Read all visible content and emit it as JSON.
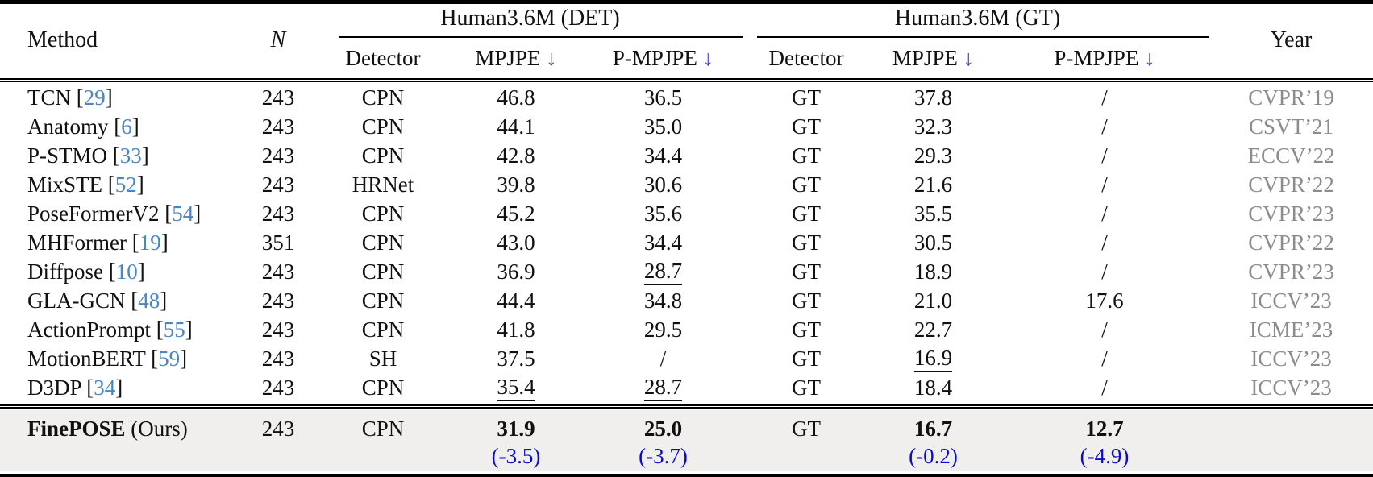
{
  "colors": {
    "text": "#111111",
    "citation": "#4a86c2",
    "arrow": "#3b3bd8",
    "delta": "#0b0bd0",
    "year": "#8c8c8c",
    "highlight_bg": "#f0efee"
  },
  "header": {
    "method": "Method",
    "n": "N",
    "det_group": "Human3.6M (DET)",
    "gt_group": "Human3.6M (GT)",
    "year": "Year",
    "detector": "Detector",
    "mpjpe": "MPJPE",
    "pmpjpe": "P-MPJPE",
    "down_arrow": "↓"
  },
  "rows": [
    {
      "method": "TCN",
      "cite": "29",
      "n": "243",
      "det_detector": "CPN",
      "det_mpjpe": "46.8",
      "det_pmpjpe": "36.5",
      "gt_detector": "GT",
      "gt_mpjpe": "37.8",
      "gt_pmpjpe": "/",
      "year": "CVPR’19",
      "underline": []
    },
    {
      "method": "Anatomy",
      "cite": "6",
      "n": "243",
      "det_detector": "CPN",
      "det_mpjpe": "44.1",
      "det_pmpjpe": "35.0",
      "gt_detector": "GT",
      "gt_mpjpe": "32.3",
      "gt_pmpjpe": "/",
      "year": "CSVT’21",
      "underline": []
    },
    {
      "method": "P-STMO",
      "cite": "33",
      "n": "243",
      "det_detector": "CPN",
      "det_mpjpe": "42.8",
      "det_pmpjpe": "34.4",
      "gt_detector": "GT",
      "gt_mpjpe": "29.3",
      "gt_pmpjpe": "/",
      "year": "ECCV’22",
      "underline": []
    },
    {
      "method": "MixSTE",
      "cite": "52",
      "n": "243",
      "det_detector": "HRNet",
      "det_mpjpe": "39.8",
      "det_pmpjpe": "30.6",
      "gt_detector": "GT",
      "gt_mpjpe": "21.6",
      "gt_pmpjpe": "/",
      "year": "CVPR’22",
      "underline": []
    },
    {
      "method": "PoseFormerV2",
      "cite": "54",
      "n": "243",
      "det_detector": "CPN",
      "det_mpjpe": "45.2",
      "det_pmpjpe": "35.6",
      "gt_detector": "GT",
      "gt_mpjpe": "35.5",
      "gt_pmpjpe": "/",
      "year": "CVPR’23",
      "underline": []
    },
    {
      "method": "MHFormer",
      "cite": "19",
      "n": "351",
      "det_detector": "CPN",
      "det_mpjpe": "43.0",
      "det_pmpjpe": "34.4",
      "gt_detector": "GT",
      "gt_mpjpe": "30.5",
      "gt_pmpjpe": "/",
      "year": "CVPR’22",
      "underline": []
    },
    {
      "method": "Diffpose",
      "cite": "10",
      "n": "243",
      "det_detector": "CPN",
      "det_mpjpe": "36.9",
      "det_pmpjpe": "28.7",
      "gt_detector": "GT",
      "gt_mpjpe": "18.9",
      "gt_pmpjpe": "/",
      "year": "CVPR’23",
      "underline": [
        "det_pmpjpe"
      ]
    },
    {
      "method": "GLA-GCN",
      "cite": "48",
      "n": "243",
      "det_detector": "CPN",
      "det_mpjpe": "44.4",
      "det_pmpjpe": "34.8",
      "gt_detector": "GT",
      "gt_mpjpe": "21.0",
      "gt_pmpjpe": "17.6",
      "year": "ICCV’23",
      "underline": []
    },
    {
      "method": "ActionPrompt",
      "cite": "55",
      "n": "243",
      "det_detector": "CPN",
      "det_mpjpe": "41.8",
      "det_pmpjpe": "29.5",
      "gt_detector": "GT",
      "gt_mpjpe": "22.7",
      "gt_pmpjpe": "/",
      "year": "ICME’23",
      "underline": []
    },
    {
      "method": "MotionBERT",
      "cite": "59",
      "n": "243",
      "det_detector": "SH",
      "det_mpjpe": "37.5",
      "det_pmpjpe": "/",
      "gt_detector": "GT",
      "gt_mpjpe": "16.9",
      "gt_pmpjpe": "/",
      "year": "ICCV’23",
      "underline": [
        "gt_mpjpe"
      ]
    },
    {
      "method": "D3DP",
      "cite": "34",
      "n": "243",
      "det_detector": "CPN",
      "det_mpjpe": "35.4",
      "det_pmpjpe": "28.7",
      "gt_detector": "GT",
      "gt_mpjpe": "18.4",
      "gt_pmpjpe": "/",
      "year": "ICCV’23",
      "underline": [
        "det_mpjpe",
        "det_pmpjpe"
      ]
    }
  ],
  "ours": {
    "method_name": "FinePOSE",
    "method_suffix": "(Ours)",
    "n": "243",
    "det_detector": "CPN",
    "det_mpjpe": "31.9",
    "det_mpjpe_delta": "(-3.5)",
    "det_pmpjpe": "25.0",
    "det_pmpjpe_delta": "(-3.7)",
    "gt_detector": "GT",
    "gt_mpjpe": "16.7",
    "gt_mpjpe_delta": "(-0.2)",
    "gt_pmpjpe": "12.7",
    "gt_pmpjpe_delta": "(-4.9)",
    "year": ""
  }
}
